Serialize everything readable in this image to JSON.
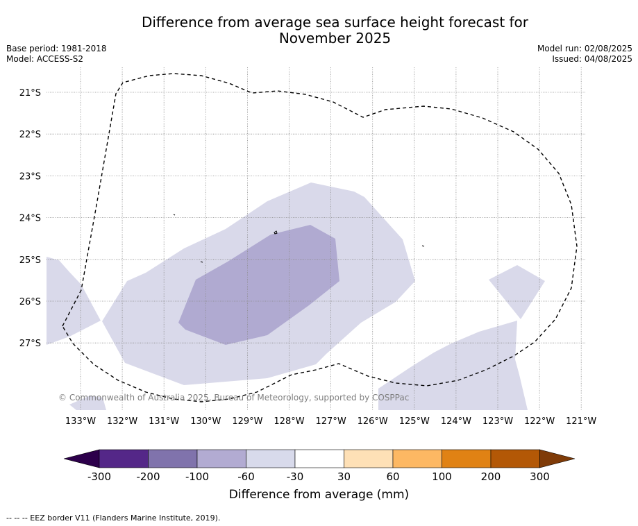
{
  "title": {
    "line1": "Difference from average sea surface height forecast for",
    "line2": "November 2025"
  },
  "meta_left": {
    "base_period": "Base period: 1981-2018",
    "model": "Model: ACCESS-S2"
  },
  "meta_right": {
    "model_run": "Model run: 02/08/2025",
    "issued": "Issued: 04/08/2025"
  },
  "map": {
    "lat_labels": [
      "21°S",
      "22°S",
      "23°S",
      "24°S",
      "25°S",
      "26°S",
      "27°S"
    ],
    "lon_labels": [
      "133°W",
      "132°W",
      "131°W",
      "130°W",
      "129°W",
      "128°W",
      "127°W",
      "126°W",
      "125°W",
      "124°W",
      "123°W",
      "122°W",
      "121°W"
    ],
    "attribution": "© Commonwealth of Australia 2025, Bureau of Meteorology, supported by COSPPac",
    "colors": {
      "band_-60_-30": "#d9d9ea",
      "band_-100_-60": "#b0aad1",
      "gridline": "#8c8c8c",
      "eez": "#000000"
    }
  },
  "colorbar": {
    "ticks": [
      "-300",
      "-200",
      "-100",
      "-60",
      "-30",
      "30",
      "60",
      "100",
      "200",
      "300"
    ],
    "colors": [
      "#2d004b",
      "#542788",
      "#8073ac",
      "#b2abd2",
      "#d8daeb",
      "#ffffff",
      "#fee0b6",
      "#fdb863",
      "#e08214",
      "#b35806",
      "#7f3b08"
    ],
    "title": "Difference from average (mm)"
  },
  "footer": {
    "eez_note": "--  --  -- EEZ border V11 (Flanders Marine Institute, 2019)."
  }
}
